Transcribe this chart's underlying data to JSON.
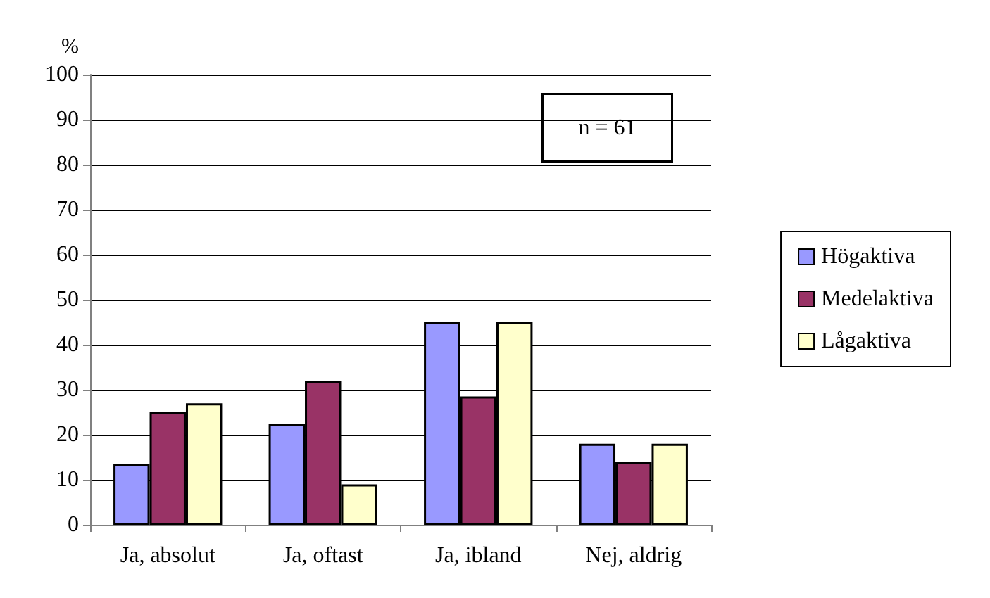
{
  "chart_data": {
    "type": "bar",
    "ylabel": "%",
    "categories": [
      "Ja, absolut",
      "Ja, oftast",
      "Ja, ibland",
      "Nej, aldrig"
    ],
    "series": [
      {
        "name": "Högaktiva",
        "color": "#9999ff",
        "values": [
          13.5,
          22.5,
          45,
          18
        ]
      },
      {
        "name": "Medelaktiva",
        "color": "#993366",
        "values": [
          25,
          32,
          28.5,
          14
        ]
      },
      {
        "name": "Lågaktiva",
        "color": "#ffffcc",
        "values": [
          27,
          9,
          45,
          18
        ]
      }
    ],
    "ylim": [
      0,
      100
    ],
    "yticks": [
      0,
      10,
      20,
      30,
      40,
      50,
      60,
      70,
      80,
      90,
      100
    ],
    "grid": "y",
    "legend": "right",
    "annotations": [
      "n = 61"
    ]
  }
}
